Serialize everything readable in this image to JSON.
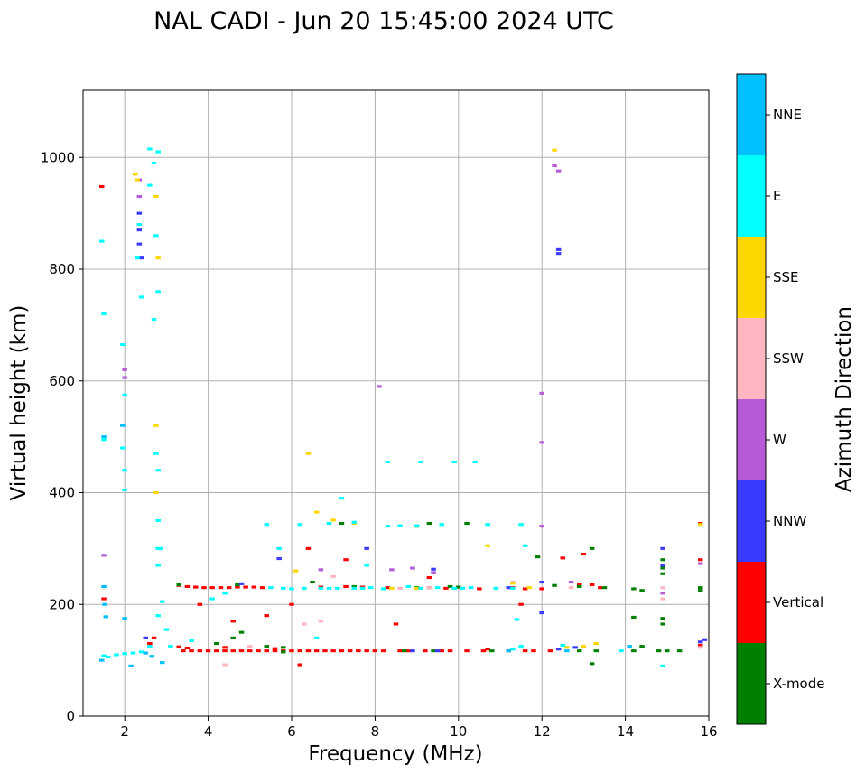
{
  "chart_data": {
    "type": "scatter",
    "title": "NAL CADI - Jun 20 15:45:00 2024 UTC",
    "xlabel": "Frequency (MHz)",
    "ylabel": "Virtual height (km)",
    "xlim": [
      1.0,
      16.0
    ],
    "ylim": [
      0,
      1120
    ],
    "xticks": [
      2,
      4,
      6,
      8,
      10,
      12,
      14,
      16
    ],
    "xtick_labels": [
      "2",
      "4",
      "6",
      "8",
      "10",
      "12",
      "14",
      "16"
    ],
    "yticks": [
      0,
      200,
      400,
      600,
      800,
      1000
    ],
    "ytick_labels": [
      "0",
      "200",
      "400",
      "600",
      "800",
      "1000"
    ],
    "grid": true,
    "colorbar": {
      "label": "Azimuth Direction",
      "categories": [
        "X-mode",
        "Vertical",
        "NNW",
        "W",
        "SSW",
        "SSE",
        "E",
        "NNE"
      ],
      "colors": [
        "#008000",
        "#ff0000",
        "#3a3aff",
        "#b65ad8",
        "#ffb6c1",
        "#ffd700",
        "#00ffff",
        "#00bfff"
      ]
    },
    "echo_width_mhz": 0.12,
    "echo_height_km": 5,
    "series": [
      {
        "name": "Vertical",
        "points": [
          [
            3.4,
            117
          ],
          [
            3.6,
            117
          ],
          [
            3.8,
            117
          ],
          [
            4.0,
            117
          ],
          [
            4.2,
            117
          ],
          [
            4.4,
            117
          ],
          [
            4.6,
            117
          ],
          [
            4.8,
            117
          ],
          [
            5.0,
            117
          ],
          [
            5.2,
            117
          ],
          [
            5.4,
            117
          ],
          [
            5.6,
            117
          ],
          [
            5.8,
            117
          ],
          [
            6.0,
            117
          ],
          [
            6.2,
            117
          ],
          [
            6.4,
            117
          ],
          [
            6.6,
            117
          ],
          [
            6.8,
            117
          ],
          [
            7.0,
            117
          ],
          [
            7.2,
            117
          ],
          [
            7.4,
            117
          ],
          [
            7.6,
            117
          ],
          [
            7.8,
            117
          ],
          [
            8.0,
            117
          ],
          [
            8.2,
            117
          ],
          [
            8.6,
            117
          ],
          [
            8.8,
            117
          ],
          [
            9.2,
            117
          ],
          [
            9.6,
            117
          ],
          [
            9.8,
            117
          ],
          [
            10.2,
            117
          ],
          [
            10.6,
            117
          ],
          [
            11.2,
            117
          ],
          [
            11.6,
            117
          ],
          [
            11.8,
            117
          ],
          [
            12.2,
            117
          ],
          [
            15.8,
            127
          ],
          [
            3.3,
            124
          ],
          [
            3.5,
            122
          ],
          [
            4.4,
            123
          ],
          [
            5.6,
            121
          ],
          [
            3.3,
            234
          ],
          [
            3.5,
            232
          ],
          [
            3.7,
            231
          ],
          [
            3.9,
            230
          ],
          [
            4.1,
            230
          ],
          [
            4.3,
            230
          ],
          [
            4.5,
            230
          ],
          [
            4.7,
            231
          ],
          [
            4.9,
            231
          ],
          [
            5.1,
            231
          ],
          [
            5.3,
            230
          ],
          [
            6.7,
            231
          ],
          [
            7.3,
            232
          ],
          [
            7.7,
            231
          ],
          [
            8.3,
            230
          ],
          [
            9.7,
            229
          ],
          [
            10.5,
            228
          ],
          [
            11.3,
            230
          ],
          [
            11.6,
            228
          ],
          [
            12.0,
            228
          ],
          [
            12.9,
            235
          ],
          [
            13.2,
            235
          ],
          [
            1.45,
            948
          ],
          [
            1.5,
            210
          ],
          [
            2.7,
            140
          ],
          [
            2.6,
            130
          ],
          [
            3.8,
            200
          ],
          [
            4.6,
            170
          ],
          [
            5.4,
            180
          ],
          [
            6.0,
            200
          ],
          [
            6.2,
            92
          ],
          [
            6.4,
            300
          ],
          [
            7.3,
            280
          ],
          [
            8.5,
            165
          ],
          [
            9.3,
            248
          ],
          [
            10.7,
            120
          ],
          [
            11.5,
            200
          ],
          [
            12.5,
            283
          ],
          [
            13.0,
            290
          ],
          [
            13.4,
            230
          ],
          [
            15.8,
            280
          ],
          [
            15.8,
            345
          ]
        ]
      },
      {
        "name": "X-mode",
        "points": [
          [
            4.2,
            130
          ],
          [
            4.6,
            140
          ],
          [
            4.8,
            150
          ],
          [
            5.4,
            125
          ],
          [
            5.8,
            123
          ],
          [
            8.7,
            117
          ],
          [
            9.4,
            117
          ],
          [
            10.8,
            117
          ],
          [
            12.9,
            117
          ],
          [
            13.3,
            117
          ],
          [
            14.2,
            117
          ],
          [
            14.4,
            125
          ],
          [
            14.8,
            117
          ],
          [
            15.0,
            117
          ],
          [
            15.3,
            117
          ],
          [
            9.0,
            230
          ],
          [
            9.3,
            230
          ],
          [
            9.8,
            232
          ],
          [
            10.0,
            231
          ],
          [
            12.3,
            234
          ],
          [
            12.9,
            232
          ],
          [
            13.5,
            230
          ],
          [
            14.2,
            228
          ],
          [
            14.4,
            225
          ],
          [
            15.8,
            230
          ],
          [
            14.9,
            165
          ],
          [
            14.9,
            175
          ],
          [
            14.9,
            255
          ],
          [
            14.9,
            265
          ],
          [
            14.9,
            280
          ],
          [
            15.8,
            225
          ],
          [
            3.3,
            235
          ],
          [
            4.7,
            235
          ],
          [
            6.5,
            240
          ],
          [
            7.5,
            232
          ],
          [
            9.0,
            340
          ],
          [
            9.3,
            345
          ],
          [
            10.2,
            345
          ],
          [
            13.2,
            94
          ],
          [
            13.2,
            300
          ],
          [
            14.2,
            177
          ],
          [
            11.9,
            285
          ],
          [
            5.8,
            115
          ],
          [
            7.2,
            345
          ]
        ]
      },
      {
        "name": "NNW",
        "points": [
          [
            2.35,
            845
          ],
          [
            2.35,
            870
          ],
          [
            2.35,
            900
          ],
          [
            2.4,
            820
          ],
          [
            8.9,
            117
          ],
          [
            9.5,
            117
          ],
          [
            12.4,
            835
          ],
          [
            12.4,
            828
          ],
          [
            12.0,
            185
          ],
          [
            12.0,
            240
          ],
          [
            14.9,
            300
          ],
          [
            14.9,
            270
          ],
          [
            15.8,
            133
          ],
          [
            15.9,
            137
          ],
          [
            12.8,
            123
          ],
          [
            11.2,
            230
          ],
          [
            9.4,
            263
          ],
          [
            7.8,
            300
          ],
          [
            5.7,
            282
          ],
          [
            4.8,
            237
          ],
          [
            2.5,
            140
          ],
          [
            12.4,
            120
          ]
        ]
      },
      {
        "name": "W",
        "points": [
          [
            1.5,
            288
          ],
          [
            2.0,
            620
          ],
          [
            2.0,
            606
          ],
          [
            2.35,
            930
          ],
          [
            2.35,
            960
          ],
          [
            8.1,
            590
          ],
          [
            12.0,
            578
          ],
          [
            12.0,
            490
          ],
          [
            12.0,
            340
          ],
          [
            12.3,
            985
          ],
          [
            8.4,
            262
          ],
          [
            8.9,
            265
          ],
          [
            12.7,
            240
          ],
          [
            14.9,
            220
          ],
          [
            9.4,
            257
          ],
          [
            6.7,
            262
          ],
          [
            12.4,
            976
          ],
          [
            15.8,
            273
          ]
        ]
      },
      {
        "name": "SSW",
        "points": [
          [
            4.4,
            92
          ],
          [
            5.0,
            125
          ],
          [
            8.6,
            229
          ],
          [
            12.7,
            230
          ],
          [
            14.9,
            210
          ],
          [
            14.9,
            230
          ],
          [
            6.7,
            170
          ],
          [
            7.0,
            250
          ],
          [
            9.3,
            230
          ],
          [
            11.3,
            240
          ],
          [
            15.8,
            123
          ],
          [
            6.3,
            165
          ]
        ]
      },
      {
        "name": "SSE",
        "points": [
          [
            2.25,
            970
          ],
          [
            2.3,
            960
          ],
          [
            2.75,
            930
          ],
          [
            2.75,
            520
          ],
          [
            2.75,
            400
          ],
          [
            6.4,
            470
          ],
          [
            6.6,
            365
          ],
          [
            10.7,
            305
          ],
          [
            8.4,
            229
          ],
          [
            9.0,
            229
          ],
          [
            11.7,
            230
          ],
          [
            13.3,
            130
          ],
          [
            13.0,
            125
          ],
          [
            12.6,
            123
          ],
          [
            12.3,
            1013
          ],
          [
            7.0,
            351
          ],
          [
            7.5,
            345
          ],
          [
            15.8,
            343
          ],
          [
            2.8,
            820
          ],
          [
            11.3,
            238
          ],
          [
            6.1,
            260
          ]
        ]
      },
      {
        "name": "E",
        "points": [
          [
            1.5,
            108
          ],
          [
            1.6,
            106
          ],
          [
            1.8,
            110
          ],
          [
            2.0,
            112
          ],
          [
            2.2,
            113
          ],
          [
            2.4,
            115
          ],
          [
            2.6,
            125
          ],
          [
            2.8,
            180
          ],
          [
            2.85,
            300
          ],
          [
            2.9,
            205
          ],
          [
            3.0,
            155
          ],
          [
            3.1,
            125
          ],
          [
            2.3,
            820
          ],
          [
            2.35,
            880
          ],
          [
            2.4,
            750
          ],
          [
            2.6,
            950
          ],
          [
            2.6,
            1015
          ],
          [
            2.7,
            990
          ],
          [
            2.75,
            860
          ],
          [
            2.8,
            1010
          ],
          [
            2.7,
            710
          ],
          [
            2.8,
            760
          ],
          [
            2.75,
            470
          ],
          [
            2.8,
            440
          ],
          [
            2.8,
            350
          ],
          [
            2.8,
            300
          ],
          [
            2.8,
            270
          ],
          [
            1.5,
            720
          ],
          [
            1.45,
            850
          ],
          [
            1.95,
            665
          ],
          [
            2.0,
            575
          ],
          [
            1.95,
            480
          ],
          [
            2.0,
            440
          ],
          [
            1.5,
            495
          ],
          [
            2.0,
            405
          ],
          [
            5.5,
            230
          ],
          [
            5.8,
            229
          ],
          [
            6.0,
            228
          ],
          [
            6.3,
            229
          ],
          [
            6.7,
            229
          ],
          [
            6.9,
            229
          ],
          [
            7.1,
            229
          ],
          [
            7.5,
            229
          ],
          [
            7.7,
            229
          ],
          [
            7.9,
            230
          ],
          [
            8.2,
            228
          ],
          [
            8.8,
            232
          ],
          [
            9.1,
            229
          ],
          [
            9.5,
            230
          ],
          [
            9.9,
            229
          ],
          [
            10.1,
            229
          ],
          [
            10.3,
            230
          ],
          [
            10.9,
            229
          ],
          [
            11.3,
            229
          ],
          [
            5.4,
            343
          ],
          [
            6.2,
            343
          ],
          [
            6.9,
            345
          ],
          [
            7.5,
            347
          ],
          [
            8.3,
            340
          ],
          [
            8.6,
            341
          ],
          [
            9.0,
            341
          ],
          [
            9.6,
            343
          ],
          [
            10.7,
            343
          ],
          [
            11.5,
            343
          ],
          [
            8.3,
            455
          ],
          [
            9.1,
            455
          ],
          [
            9.9,
            455
          ],
          [
            10.4,
            455
          ],
          [
            7.2,
            390
          ],
          [
            11.3,
            120
          ],
          [
            11.5,
            125
          ],
          [
            12.5,
            127
          ],
          [
            13.9,
            117
          ],
          [
            14.9,
            90
          ],
          [
            11.6,
            305
          ],
          [
            11.4,
            173
          ],
          [
            5.7,
            300
          ],
          [
            4.4,
            220
          ],
          [
            4.1,
            210
          ],
          [
            6.6,
            140
          ],
          [
            3.6,
            135
          ],
          [
            7.8,
            270
          ]
        ]
      },
      {
        "name": "NNE",
        "points": [
          [
            1.5,
            232
          ],
          [
            1.52,
            200
          ],
          [
            1.55,
            178
          ],
          [
            1.45,
            100
          ],
          [
            2.15,
            90
          ],
          [
            2.0,
            175
          ],
          [
            2.5,
            113
          ],
          [
            2.65,
            107
          ],
          [
            2.9,
            96
          ],
          [
            1.5,
            500
          ],
          [
            1.95,
            520
          ],
          [
            11.2,
            117
          ],
          [
            12.6,
            117
          ],
          [
            14.1,
            125
          ]
        ]
      }
    ]
  }
}
